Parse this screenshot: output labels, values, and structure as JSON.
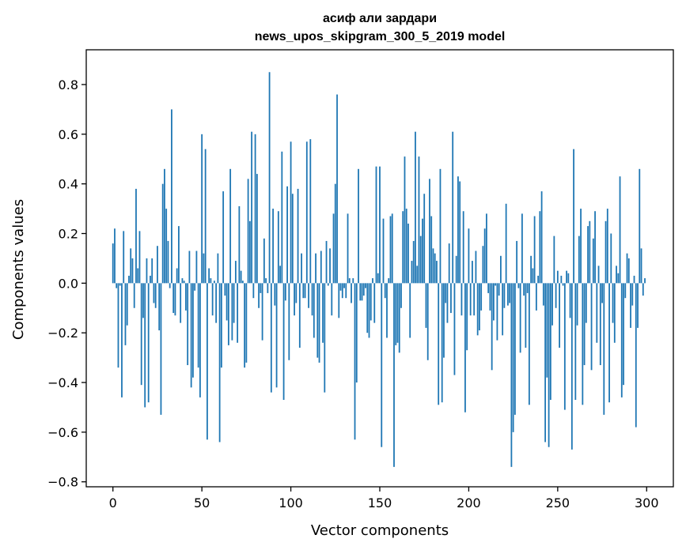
{
  "chart_data": {
    "type": "bar",
    "title": "асиф али зардари",
    "subtitle": "news_upos_skipgram_300_5_2019 model",
    "xlabel": "Vector components",
    "ylabel": "Components values",
    "xlim": [
      -15,
      315
    ],
    "ylim": [
      -0.82,
      0.94
    ],
    "xticks": [
      0,
      50,
      100,
      150,
      200,
      250,
      300
    ],
    "yticks": [
      -0.8,
      -0.6,
      -0.4,
      -0.2,
      0.0,
      0.2,
      0.4,
      0.6,
      0.8
    ],
    "ytick_labels": [
      "−0.8",
      "−0.6",
      "−0.4",
      "−0.2",
      "0.0",
      "0.2",
      "0.4",
      "0.6",
      "0.8"
    ],
    "bar_color": "#1f77b4",
    "grid": false,
    "legend": "none",
    "x": "component index 0..299",
    "values": [
      0.16,
      0.22,
      -0.02,
      -0.34,
      -0.01,
      -0.46,
      0.21,
      -0.25,
      -0.17,
      0.03,
      0.14,
      0.1,
      -0.1,
      0.38,
      0.06,
      0.21,
      -0.41,
      -0.14,
      -0.5,
      0.1,
      -0.48,
      0.03,
      0.1,
      -0.08,
      -0.1,
      0.15,
      -0.19,
      -0.53,
      0.4,
      0.46,
      0.3,
      0.17,
      -0.02,
      0.7,
      -0.12,
      -0.13,
      0.06,
      0.23,
      -0.16,
      0.02,
      0.01,
      -0.11,
      -0.33,
      0.13,
      -0.42,
      -0.38,
      -0.03,
      0.13,
      -0.34,
      -0.46,
      0.6,
      0.12,
      0.54,
      -0.63,
      0.06,
      0.02,
      -0.13,
      0.01,
      -0.16,
      0.12,
      -0.64,
      -0.34,
      0.37,
      -0.05,
      -0.15,
      -0.25,
      0.46,
      -0.23,
      -0.16,
      0.09,
      -0.24,
      0.31,
      0.05,
      0.01,
      -0.34,
      -0.32,
      0.42,
      0.25,
      0.61,
      -0.06,
      0.6,
      0.44,
      -0.1,
      -0.04,
      -0.23,
      0.18,
      0.02,
      -0.04,
      0.85,
      -0.44,
      0.3,
      -0.09,
      -0.42,
      0.29,
      0.07,
      0.53,
      -0.47,
      -0.07,
      0.39,
      -0.31,
      0.57,
      0.36,
      -0.13,
      -0.08,
      0.38,
      -0.26,
      0.12,
      -0.06,
      -0.06,
      0.57,
      -0.1,
      0.58,
      -0.13,
      -0.22,
      0.12,
      -0.3,
      -0.32,
      0.13,
      -0.24,
      -0.44,
      0.17,
      -0.01,
      0.14,
      -0.13,
      0.28,
      0.4,
      0.76,
      -0.14,
      -0.03,
      -0.06,
      -0.02,
      -0.06,
      0.28,
      0.02,
      -0.08,
      0.02,
      -0.63,
      -0.4,
      0.46,
      -0.07,
      -0.07,
      -0.05,
      -0.02,
      -0.2,
      -0.22,
      -0.15,
      0.02,
      -0.16,
      0.47,
      0.04,
      0.47,
      -0.66,
      0.26,
      -0.06,
      -0.22,
      0.02,
      0.27,
      0.28,
      -0.74,
      -0.25,
      -0.24,
      -0.28,
      -0.1,
      0.29,
      0.51,
      0.3,
      0.24,
      -0.22,
      0.09,
      0.17,
      0.61,
      0.07,
      0.51,
      0.19,
      0.26,
      0.36,
      -0.18,
      -0.31,
      0.42,
      0.27,
      0.14,
      0.12,
      0.09,
      -0.49,
      0.46,
      -0.48,
      -0.3,
      -0.08,
      -0.16,
      0.16,
      -0.12,
      0.61,
      -0.37,
      0.11,
      0.43,
      0.41,
      -0.13,
      0.29,
      -0.52,
      -0.27,
      0.22,
      -0.13,
      0.09,
      -0.13,
      0.13,
      -0.21,
      -0.19,
      -0.11,
      0.15,
      0.22,
      0.28,
      -0.04,
      -0.11,
      -0.35,
      -0.15,
      -0.01,
      -0.23,
      -0.05,
      0.11,
      -0.21,
      -0.1,
      0.32,
      -0.09,
      -0.08,
      -0.74,
      -0.6,
      -0.53,
      0.17,
      -0.02,
      -0.28,
      0.28,
      -0.05,
      -0.26,
      -0.04,
      -0.49,
      0.11,
      0.06,
      0.27,
      -0.11,
      0.03,
      0.29,
      0.37,
      -0.09,
      -0.64,
      -0.38,
      -0.66,
      -0.47,
      -0.17,
      0.19,
      -0.1,
      0.05,
      -0.26,
      0.03,
      -0.01,
      -0.51,
      0.05,
      0.04,
      -0.14,
      -0.67,
      0.54,
      -0.47,
      -0.17,
      0.19,
      0.3,
      -0.49,
      -0.33,
      -0.16,
      0.23,
      0.25,
      -0.35,
      0.18,
      0.29,
      -0.24,
      0.07,
      -0.33,
      -0.08,
      -0.53,
      0.25,
      0.3,
      -0.48,
      0.2,
      -0.16,
      -0.24,
      0.07,
      0.04,
      0.43,
      -0.46,
      -0.41,
      -0.06,
      0.12,
      0.1,
      -0.18,
      -0.09,
      0.03,
      -0.58,
      -0.18,
      0.46,
      0.14,
      -0.05,
      0.02
    ]
  }
}
